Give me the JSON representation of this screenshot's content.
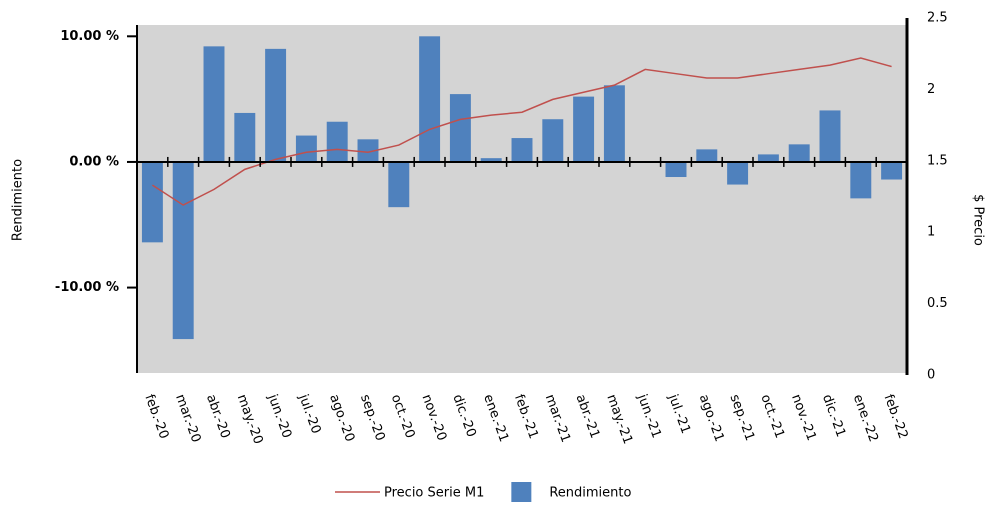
{
  "chart_data": {
    "type": "bar",
    "categories": [
      "feb.-20",
      "mar.-20",
      "abr.-20",
      "may.-20",
      "jun.-20",
      "jul.-20",
      "ago.-20",
      "sep.-20",
      "oct.-20",
      "nov.-20",
      "dic.-20",
      "ene.-21",
      "feb.-21",
      "mar.-21",
      "abr.-21",
      "may.-21",
      "jun.-21",
      "jul.-21",
      "ago.-21",
      "sep.-21",
      "oct.-21",
      "nov.-21",
      "dic.-21",
      "ene.-22",
      "feb.-22"
    ],
    "y_label": "Rendimiento",
    "y2_label": "$ Precio",
    "series": [
      {
        "name": "Precio Serie M1",
        "type": "line",
        "axis": "y2",
        "color": "#c0504d",
        "values": [
          1.33,
          1.19,
          1.3,
          1.44,
          1.51,
          1.56,
          1.58,
          1.56,
          1.61,
          1.72,
          1.79,
          1.82,
          1.84,
          1.93,
          1.98,
          2.03,
          2.14,
          2.11,
          2.08,
          2.08,
          2.11,
          2.14,
          2.17,
          2.22,
          2.16
        ]
      },
      {
        "name": "Rendimiento",
        "type": "bar",
        "color": "#4f81bd",
        "values": [
          -6.4,
          -14.1,
          9.2,
          3.9,
          9.0,
          2.1,
          3.2,
          1.8,
          -3.6,
          10.0,
          5.4,
          0.3,
          1.9,
          3.4,
          5.2,
          6.1,
          0,
          -1.2,
          1.0,
          -1.8,
          0.6,
          1.4,
          4.1,
          -2.9,
          -1.4
        ]
      }
    ],
    "ylim": [
      -16.8,
      10.9
    ],
    "yticks": [
      {
        "value": -10,
        "label": "-10.00 %"
      },
      {
        "value": 0,
        "label": "0.00 %"
      },
      {
        "value": 10,
        "label": "10.00 %"
      }
    ],
    "y2lim": [
      0,
      2.5
    ],
    "y2ticks": [
      0,
      0.5,
      1,
      1.5,
      2,
      2.5
    ],
    "background": "#d4d4d4"
  }
}
